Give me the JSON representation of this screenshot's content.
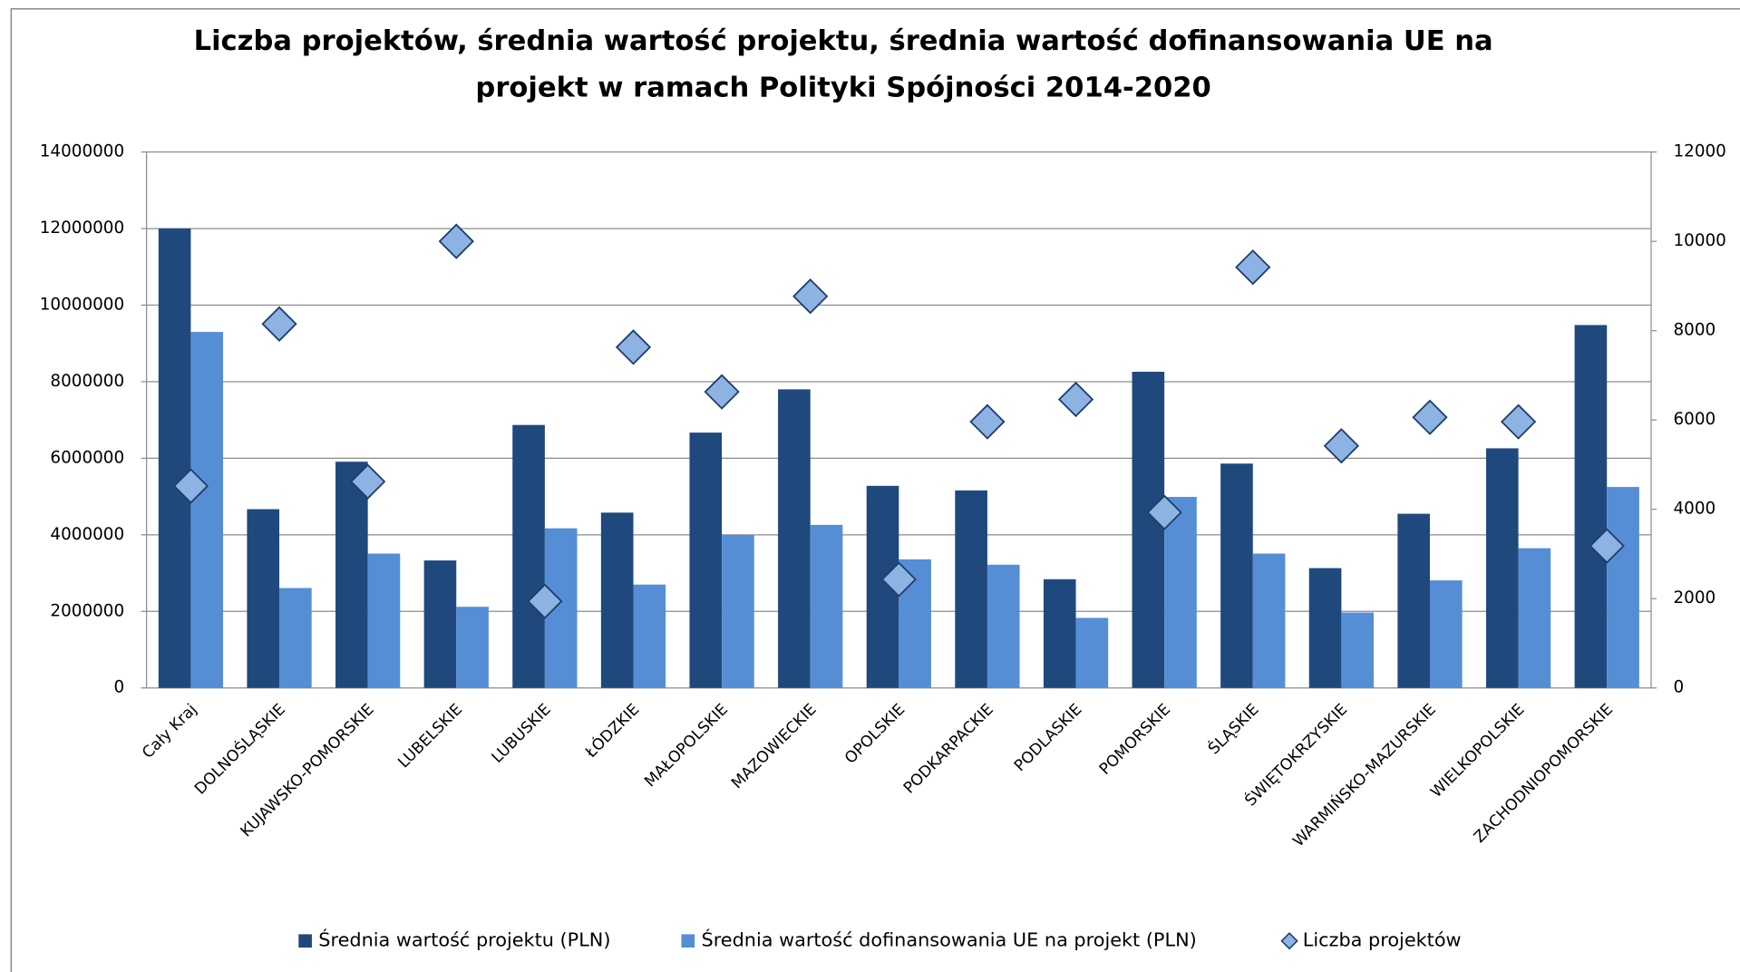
{
  "chart_data": {
    "type": "bar",
    "title": [
      "Liczba projektów, średnia wartość projektu, średnia wartość dofinansowania UE na",
      "projekt w ramach Polityki Spójności 2014-2020"
    ],
    "categories": [
      "Cały Kraj",
      "DOLNOŚLĄSKIE",
      "KUJAWSKO-POMORSKIE",
      "LUBELSKIE",
      "LUBUSKIE",
      "ŁÓDZKIE",
      "MAŁOPOLSKIE",
      "MAZOWIECKIE",
      "OPOLSKIE",
      "PODKARPACKIE",
      "PODLASKIE",
      "POMORSKIE",
      "ŚLĄSKIE",
      "ŚWIĘTOKRZYSKIE",
      "WARMIŃSKO-MAZURSKIE",
      "WIELKOPOLSKIE",
      "ZACHODNIOPOMORSKIE"
    ],
    "series": [
      {
        "name": "Średnia wartość projektu (PLN)",
        "color": "#1f497d",
        "values": [
          12000000,
          4670000,
          5910000,
          3330000,
          6870000,
          4580000,
          6670000,
          7800000,
          5280000,
          5160000,
          2840000,
          8260000,
          5860000,
          3130000,
          4550000,
          6260000,
          9480000
        ]
      },
      {
        "name": "Średnia wartość dofinansowania UE na projekt (PLN)",
        "color": "#558ed5",
        "values": [
          9300000,
          2610000,
          3510000,
          2120000,
          4170000,
          2700000,
          4000000,
          4260000,
          3360000,
          3220000,
          1830000,
          4990000,
          3510000,
          1970000,
          2810000,
          3650000,
          5250000
        ]
      },
      {
        "name": "Liczba projektów",
        "color": "#8db3e2",
        "type": "scatter",
        "marker": "diamond",
        "axis": "y2",
        "values": [
          4520,
          8150,
          4620,
          10000,
          1940,
          7630,
          6630,
          8770,
          2430,
          5960,
          6460,
          3930,
          9420,
          5420,
          6060,
          5960,
          3180
        ]
      }
    ],
    "ylim": [
      0,
      14000000
    ],
    "yticks": [
      0,
      2000000,
      4000000,
      6000000,
      8000000,
      10000000,
      12000000,
      14000000
    ],
    "y2lim": [
      0,
      12000
    ],
    "y2ticks": [
      0,
      2000,
      4000,
      6000,
      8000,
      10000,
      12000
    ],
    "grid": true,
    "legend": "bottom"
  }
}
